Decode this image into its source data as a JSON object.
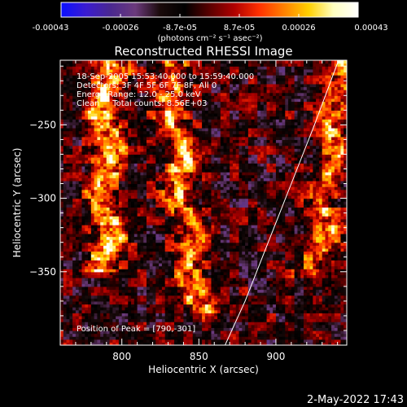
{
  "colorbar": {
    "ticks": [
      "-0.00043",
      "-0.00026",
      "-8.7e-05",
      "8.7e-05",
      "0.00026",
      "0.00043"
    ],
    "units": "(photons cm⁻² s⁻¹ asec⁻²)",
    "stops": [
      "#0a10ff",
      "#3a1bd0",
      "#4a2890",
      "#6b3a7c",
      "#1a0a0a",
      "#000000",
      "#5a0000",
      "#b00000",
      "#ff3000",
      "#ff8000",
      "#ffd000",
      "#ffffc0",
      "#ffffff"
    ]
  },
  "chart_data": {
    "type": "heatmap",
    "title": "Reconstructed RHESSI Image",
    "xlabel": "Heliocentric X (arcsec)",
    "ylabel": "Heliocentric Y (arcsec)",
    "xlim": [
      760,
      946
    ],
    "ylim": [
      -400,
      -206
    ],
    "xticks": [
      800,
      850,
      900
    ],
    "yticks": [
      -250,
      -300,
      -350
    ],
    "annotations": [
      "18-Sep-2005 15:53:40.000 to 15:59:40.000",
      "Detectors: 3F 4F 5F 6F 7F 8F, All 0",
      "Energy Range: 12.0 - 25.0 keV",
      "Clean     Total counts: 8.56E+03"
    ],
    "peak_label": "Position of Peak = [790,-301]",
    "peak": [
      790,
      -301
    ],
    "limb_curve": [
      [
        867,
        -400
      ],
      [
        880,
        -370
      ],
      [
        895,
        -330
      ],
      [
        910,
        -290
      ],
      [
        925,
        -250
      ],
      [
        940,
        -208
      ]
    ],
    "bright_ridges": [
      {
        "x_start": 790,
        "x_end": 788,
        "y_from": -206,
        "y_to": -350,
        "peak": 0.00043
      },
      {
        "x_start": 828,
        "x_end": 850,
        "y_from": -206,
        "y_to": -385,
        "peak": 0.00034
      },
      {
        "x_start": 942,
        "x_end": 925,
        "y_from": -206,
        "y_to": -355,
        "peak": 0.0003
      }
    ]
  },
  "footer": {
    "date": "2-May-2022 17:43"
  }
}
